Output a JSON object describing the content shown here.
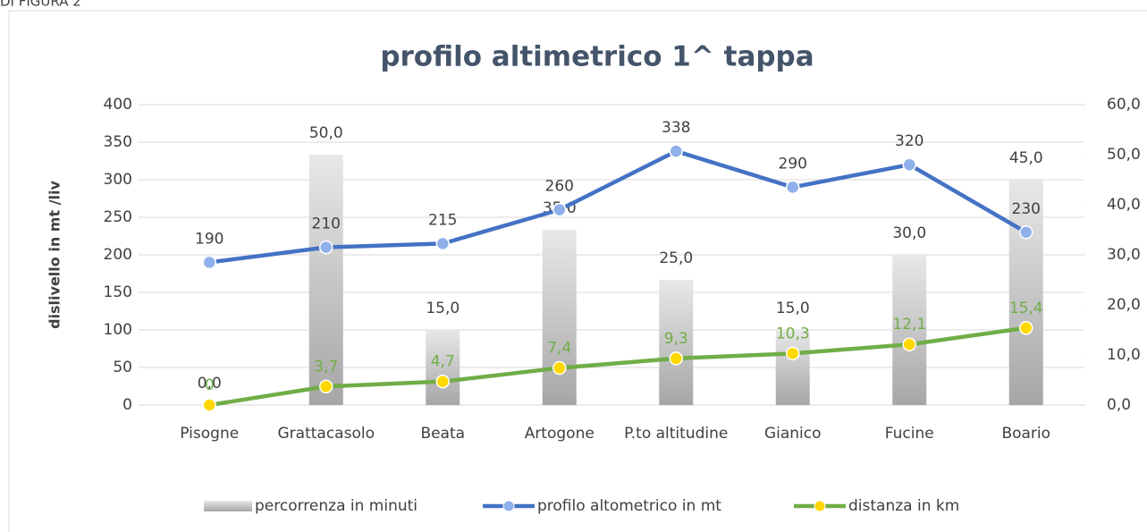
{
  "header": "DI FIGURA 2",
  "chart_data": {
    "type": "bar-line",
    "title": "profilo altimetrico 1^ tappa",
    "ylabel": "dislivello in mt /liv",
    "categories": [
      "Pisogne",
      "Grattacasolo",
      "Beata",
      "Artogone",
      "P.to altitudine",
      "Gianico",
      "Fucine",
      "Boario"
    ],
    "ylim": [
      0,
      400
    ],
    "yticks": [
      0,
      50,
      100,
      150,
      200,
      250,
      300,
      350,
      400
    ],
    "y2lim": [
      0,
      60
    ],
    "y2ticks": [
      {
        "value": 0,
        "label": "0,0"
      },
      {
        "value": 10,
        "label": "10,0"
      },
      {
        "value": 20,
        "label": "20,0"
      },
      {
        "value": 30,
        "label": "30,0"
      },
      {
        "value": 40,
        "label": "40,0"
      },
      {
        "value": 50,
        "label": "50,0"
      },
      {
        "value": 60,
        "label": "60,0"
      }
    ],
    "grid": true,
    "legend": "bottom",
    "series": [
      {
        "name": "percorrenza in minuti",
        "kind": "bar",
        "axis": "y2",
        "color": "#bfbfbf",
        "values": [
          0,
          50,
          15,
          35,
          25,
          15,
          30,
          45
        ],
        "value_labels": [
          "0,0",
          "50,0",
          "15,0",
          "35,0",
          "25,0",
          "15,0",
          "30,0",
          "45,0"
        ]
      },
      {
        "name": "profilo altometrico in mt",
        "kind": "line",
        "color": "#4472c4",
        "marker": "#8fb0ea",
        "values": [
          190,
          210,
          215,
          260,
          338,
          290,
          320,
          230
        ]
      },
      {
        "name": "distanza in km",
        "kind": "line",
        "axis": "y2",
        "color": "#70ad47",
        "marker": "#ffd800",
        "values": [
          0,
          3.7,
          4.7,
          7.4,
          9.3,
          10.3,
          12.1,
          15.4
        ],
        "value_labels": [
          "0",
          "3,7",
          "4,7",
          "7,4",
          "9,3",
          "10,3",
          "12,1",
          "15,4"
        ]
      }
    ]
  }
}
